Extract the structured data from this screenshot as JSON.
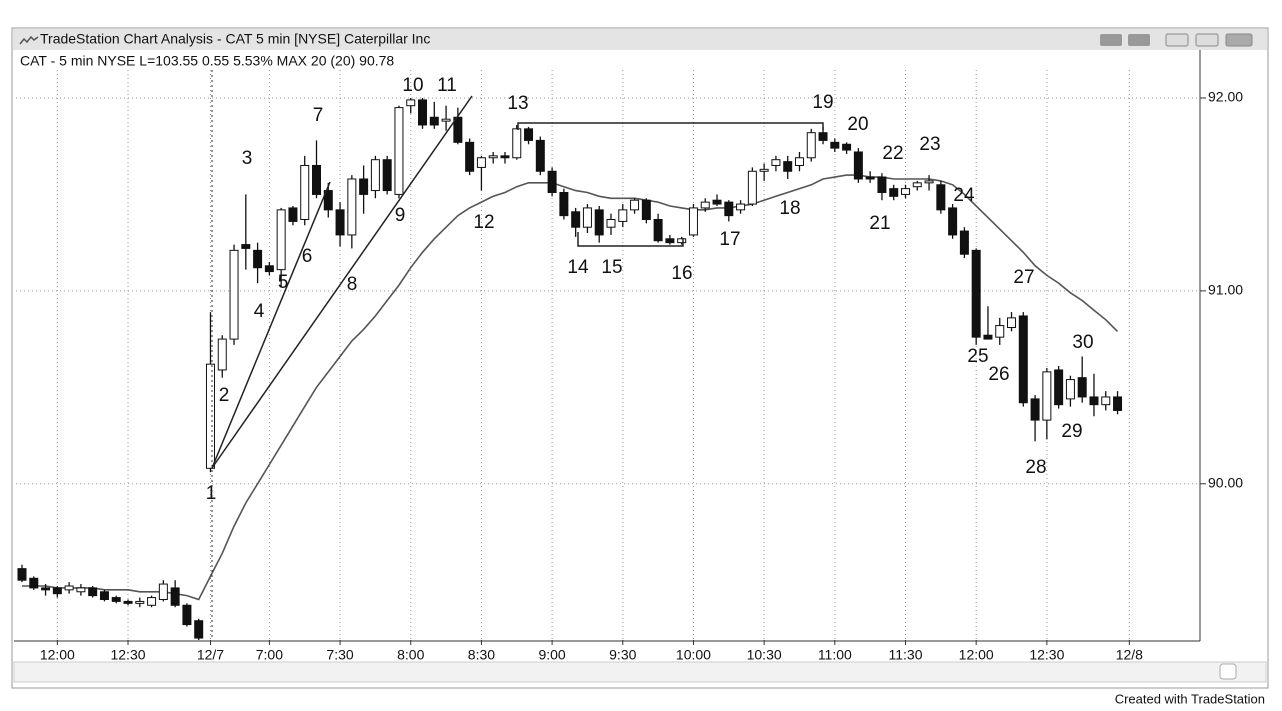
{
  "chart_data": {
    "type": "candlestick",
    "title": "TradeStation Chart Analysis - CAT 5 min [NYSE] Caterpillar Inc",
    "subtitle": "CAT - 5 min NYSE L=103.55 0.55 5.53% MAX 20 (20) 90.78",
    "footer": "Created with TradeStation",
    "categories": [
      null,
      null,
      null,
      "12:00",
      null,
      null,
      null,
      null,
      null,
      "12:30",
      null,
      null,
      null,
      null,
      null,
      null,
      "12/7",
      null,
      null,
      null,
      null,
      "7:00",
      null,
      null,
      null,
      null,
      null,
      "7:30",
      null,
      null,
      null,
      null,
      null,
      "8:00",
      null,
      null,
      null,
      null,
      null,
      "8:30",
      null,
      null,
      null,
      null,
      null,
      "9:00",
      null,
      null,
      null,
      null,
      null,
      "9:30",
      null,
      null,
      null,
      null,
      null,
      "10:00",
      null,
      null,
      null,
      null,
      null,
      "10:30",
      null,
      null,
      null,
      null,
      null,
      "11:00",
      null,
      null,
      null,
      null,
      null,
      "11:30",
      null,
      null,
      null,
      null,
      null,
      "12:00",
      null,
      null,
      null,
      null,
      null,
      "12:30",
      null,
      null,
      null,
      null,
      null,
      null,
      "12/8"
    ],
    "open": [
      89.56,
      89.51,
      89.46,
      89.46,
      89.45,
      89.44,
      89.46,
      89.44,
      89.41,
      89.39,
      89.38,
      89.37,
      89.4,
      89.46,
      89.37,
      89.29,
      90.08,
      90.59,
      90.75,
      91.24,
      91.21,
      91.13,
      91.11,
      91.43,
      91.37,
      91.65,
      91.52,
      91.42,
      91.29,
      91.58,
      91.52,
      91.68,
      91.5,
      91.96,
      91.99,
      91.9,
      91.88,
      91.9,
      91.77,
      91.64,
      91.69,
      91.7,
      91.69,
      91.84,
      91.78,
      91.62,
      91.51,
      91.41,
      91.33,
      91.42,
      91.33,
      91.36,
      91.42,
      91.47,
      91.37,
      91.27,
      91.25,
      91.29,
      91.43,
      91.47,
      91.46,
      91.42,
      91.45,
      91.62,
      91.65,
      91.67,
      91.65,
      91.69,
      91.82,
      91.77,
      91.76,
      91.72,
      91.59,
      91.59,
      91.53,
      91.5,
      91.54,
      91.56,
      91.55,
      91.43,
      91.31,
      91.21,
      90.77,
      90.76,
      90.81,
      90.87,
      90.44,
      90.33,
      90.59,
      90.44,
      90.55,
      90.45,
      90.41,
      90.45,
      null
    ],
    "high": [
      89.58,
      89.52,
      89.48,
      89.47,
      89.49,
      89.48,
      89.47,
      89.45,
      89.42,
      89.4,
      89.41,
      89.42,
      89.5,
      89.5,
      89.38,
      89.3,
      90.89,
      90.77,
      91.24,
      91.5,
      91.25,
      91.15,
      91.43,
      91.44,
      91.7,
      91.78,
      91.56,
      91.46,
      91.6,
      91.65,
      91.7,
      91.7,
      91.96,
      92.0,
      92.0,
      91.98,
      91.96,
      91.95,
      91.79,
      91.7,
      91.72,
      91.72,
      91.86,
      91.85,
      91.8,
      91.64,
      91.53,
      91.43,
      91.45,
      91.44,
      91.4,
      91.45,
      91.48,
      91.48,
      91.4,
      91.29,
      91.28,
      91.45,
      91.48,
      91.5,
      91.47,
      91.47,
      91.64,
      91.66,
      91.7,
      91.7,
      91.72,
      91.84,
      91.85,
      91.79,
      91.77,
      91.74,
      91.62,
      91.61,
      91.55,
      91.55,
      91.57,
      91.6,
      91.57,
      91.45,
      91.33,
      91.22,
      90.92,
      90.86,
      90.89,
      90.89,
      90.46,
      90.6,
      90.61,
      90.56,
      90.66,
      90.57,
      90.48,
      90.48,
      null
    ],
    "low": [
      89.49,
      89.45,
      89.42,
      89.41,
      89.43,
      89.42,
      89.41,
      89.39,
      89.38,
      89.37,
      89.36,
      89.36,
      89.39,
      89.36,
      89.26,
      89.19,
      90.06,
      90.55,
      90.72,
      91.11,
      91.04,
      91.08,
      91.02,
      91.34,
      91.34,
      91.48,
      91.38,
      91.23,
      91.22,
      91.4,
      91.48,
      91.5,
      91.48,
      91.92,
      91.84,
      91.84,
      91.83,
      91.76,
      91.6,
      91.52,
      91.66,
      91.66,
      91.68,
      91.76,
      91.6,
      91.49,
      91.37,
      91.28,
      91.3,
      91.25,
      91.29,
      91.33,
      91.4,
      91.35,
      91.25,
      91.24,
      91.24,
      91.28,
      91.41,
      91.44,
      91.36,
      91.4,
      91.44,
      91.57,
      91.62,
      91.58,
      91.62,
      91.67,
      91.76,
      91.72,
      91.71,
      91.56,
      91.56,
      91.47,
      91.47,
      91.48,
      91.52,
      91.52,
      91.4,
      91.27,
      91.17,
      90.72,
      90.75,
      90.72,
      90.79,
      90.4,
      90.22,
      90.23,
      90.39,
      90.4,
      90.42,
      90.35,
      90.38,
      90.36,
      null
    ],
    "close": [
      89.5,
      89.46,
      89.45,
      89.43,
      89.47,
      89.46,
      89.42,
      89.4,
      89.39,
      89.38,
      89.39,
      89.41,
      89.48,
      89.37,
      89.27,
      89.2,
      90.62,
      90.75,
      91.21,
      91.22,
      91.12,
      91.1,
      91.42,
      91.36,
      91.65,
      91.5,
      91.42,
      91.29,
      91.58,
      91.5,
      91.68,
      91.52,
      91.95,
      91.99,
      91.86,
      91.86,
      91.89,
      91.77,
      91.62,
      91.69,
      91.7,
      91.69,
      91.84,
      91.78,
      91.62,
      91.51,
      91.39,
      91.33,
      91.43,
      91.29,
      91.37,
      91.42,
      91.47,
      91.37,
      91.26,
      91.25,
      91.27,
      91.43,
      91.46,
      91.45,
      91.39,
      91.45,
      91.62,
      91.63,
      91.68,
      91.62,
      91.69,
      91.82,
      91.78,
      91.74,
      91.73,
      91.58,
      91.58,
      91.51,
      91.49,
      91.53,
      91.56,
      91.57,
      91.42,
      91.29,
      91.19,
      90.76,
      90.75,
      90.82,
      90.86,
      90.42,
      90.33,
      90.58,
      90.41,
      90.54,
      90.45,
      90.41,
      90.45,
      90.38,
      null
    ],
    "up_color": "#ffffff",
    "down_color": "#111111",
    "moving_average": {
      "color": "#555555",
      "values": [
        89.47,
        89.47,
        89.47,
        89.46,
        89.46,
        89.46,
        89.46,
        89.45,
        89.45,
        89.45,
        89.44,
        89.44,
        89.44,
        89.43,
        89.42,
        89.4,
        89.52,
        89.64,
        89.78,
        89.9,
        90.0,
        90.1,
        90.2,
        90.3,
        90.4,
        90.5,
        90.58,
        90.66,
        90.74,
        90.8,
        90.87,
        90.95,
        91.03,
        91.12,
        91.2,
        91.27,
        91.33,
        91.39,
        91.43,
        91.46,
        91.49,
        91.51,
        91.54,
        91.56,
        91.56,
        91.56,
        91.54,
        91.52,
        91.51,
        91.49,
        91.48,
        91.48,
        91.48,
        91.47,
        91.46,
        91.44,
        91.43,
        91.42,
        91.42,
        91.43,
        91.43,
        91.44,
        91.45,
        91.47,
        91.49,
        91.51,
        91.53,
        91.55,
        91.58,
        91.59,
        91.6,
        91.6,
        91.59,
        91.59,
        91.58,
        91.58,
        91.58,
        91.58,
        91.57,
        91.55,
        91.5,
        91.44,
        91.38,
        91.32,
        91.26,
        91.2,
        91.13,
        91.08,
        91.04,
        90.99,
        90.95,
        90.9,
        90.85,
        90.79,
        null
      ]
    },
    "ylim": [
      89.19,
      92.145
    ],
    "yticks": [
      {
        "value": 90,
        "label": "90.00"
      },
      {
        "value": 91,
        "label": "91.00"
      },
      {
        "value": 92,
        "label": "92.00"
      }
    ],
    "grid": true,
    "annotations": [
      "1",
      "2",
      "3",
      "4",
      "5",
      "6",
      "7",
      "8",
      "9",
      "10",
      "11",
      "12",
      "13",
      "14",
      "15",
      "16",
      "17",
      "18",
      "19",
      "20",
      "21",
      "22",
      "23",
      "24",
      "25",
      "26",
      "27",
      "28",
      "29",
      "30"
    ]
  }
}
